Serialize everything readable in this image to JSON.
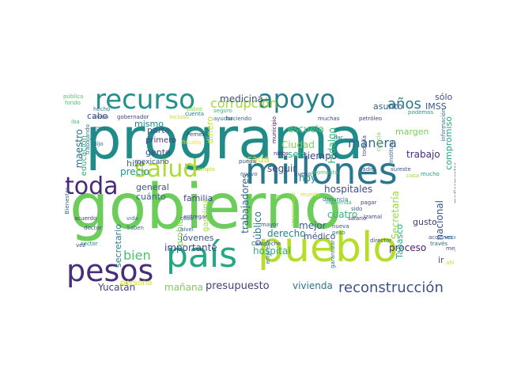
{
  "cloud": {
    "words": [
      {
        "text": "programa",
        "color": "#1f8c8a"
      },
      {
        "text": "gobierno",
        "color": "#6ccd5a"
      },
      {
        "text": "millones",
        "color": "#2a788e"
      },
      {
        "text": "pueblo",
        "color": "#b5de2b"
      },
      {
        "text": "país",
        "color": "#22a884"
      },
      {
        "text": "pesos",
        "color": "#472d7b"
      },
      {
        "text": "recurso",
        "color": "#21918c"
      },
      {
        "text": "apoyo",
        "color": "#27808e"
      },
      {
        "text": "toda",
        "color": "#482878"
      },
      {
        "text": "salud",
        "color": "#addc30"
      },
      {
        "text": "corrupción",
        "color": "#a0da39"
      },
      {
        "text": "años",
        "color": "#2a788e"
      },
      {
        "text": "reconstrucción",
        "color": "#3b528b"
      },
      {
        "text": "manera",
        "color": "#31688e"
      },
      {
        "text": "presupuesto",
        "color": "#433e85"
      },
      {
        "text": "vivienda",
        "color": "#2c728e"
      },
      {
        "text": "mañana",
        "color": "#7ad151"
      },
      {
        "text": "Yucatán",
        "color": "#414487"
      },
      {
        "text": "persona",
        "color": "#d2e21b"
      },
      {
        "text": "bien",
        "color": "#4ac16d"
      },
      {
        "text": "medicina",
        "color": "#3e4989"
      },
      {
        "text": "escuela",
        "color": "#52c569"
      },
      {
        "text": "Ciudad",
        "color": "#7ad151"
      },
      {
        "text": "seis",
        "color": "#2db27d"
      },
      {
        "text": "tiempo",
        "color": "#3f4788"
      },
      {
        "text": "cada",
        "color": "#d8e219"
      },
      {
        "text": "seguir",
        "color": "#3e4a89"
      },
      {
        "text": "hoy",
        "color": "#24868e"
      },
      {
        "text": "trabajo",
        "color": "#472a7a"
      },
      {
        "text": "margen",
        "color": "#73d056"
      },
      {
        "text": "Hidalgo",
        "color": "#35b779"
      },
      {
        "text": "asunto",
        "color": "#34618d"
      },
      {
        "text": "IMSS",
        "color": "#39558c"
      },
      {
        "text": "sólo",
        "color": "#3b528b"
      },
      {
        "text": "ir",
        "color": "#33638d"
      },
      {
        "text": "gusto",
        "color": "#453781"
      },
      {
        "text": "proceso",
        "color": "#481f70"
      },
      {
        "text": "nacional",
        "color": "#3a548c"
      },
      {
        "text": "compromiso",
        "color": "#21a685"
      },
      {
        "text": "hospitales",
        "color": "#3e4c8a"
      },
      {
        "text": "cuatro",
        "color": "#34b679"
      },
      {
        "text": "mejor",
        "color": "#355f8d"
      },
      {
        "text": "médico",
        "color": "#3c4f8a"
      },
      {
        "text": "derecho",
        "color": "#26828e"
      },
      {
        "text": "público",
        "color": "#2c738e"
      },
      {
        "text": "trabajadores",
        "color": "#31678e"
      },
      {
        "text": "hospital",
        "color": "#2ab07f"
      },
      {
        "text": "importante",
        "color": "#3d4d8a"
      },
      {
        "text": "jóvenes",
        "color": "#3c508b"
      },
      {
        "text": "familia",
        "color": "#404688"
      },
      {
        "text": "general",
        "color": "#3a548c"
      },
      {
        "text": "cuánto",
        "color": "#32658e"
      },
      {
        "text": "precio",
        "color": "#1f968b"
      },
      {
        "text": "hizo",
        "color": "#2d708e"
      },
      {
        "text": "mexicano",
        "color": "#3b528b"
      },
      {
        "text": "gente",
        "color": "#404588"
      },
      {
        "text": "parte",
        "color": "#38598c"
      },
      {
        "text": "primero",
        "color": "#44397f"
      },
      {
        "text": "mismo",
        "color": "#26828e"
      },
      {
        "text": "maestro",
        "color": "#2f6b8e"
      },
      {
        "text": "educación",
        "color": "#30b07a"
      },
      {
        "text": "cabo",
        "color": "#3b528b"
      },
      {
        "text": "problema",
        "color": "#7fd34e"
      },
      {
        "text": "secretario",
        "color": "#277f8e"
      },
      {
        "text": "Secretaría",
        "color": "#95d840"
      },
      {
        "text": "Tabasco",
        "color": "#27ad81"
      },
      {
        "text": "gasolina",
        "color": "#9bd93c"
      },
      {
        "text": "dinero",
        "color": "#c8e020"
      },
      {
        "text": "Pemex",
        "color": "#404588"
      },
      {
        "text": "fiscalía",
        "color": "#e7e419"
      },
      {
        "text": "pobre",
        "color": "#8bd646"
      },
      {
        "text": "cuenta",
        "color": "#26828e"
      },
      {
        "text": "seguro",
        "color": "#35b779"
      },
      {
        "text": "ayudar",
        "color": "#2f6c8e"
      },
      {
        "text": "haciendo",
        "color": "#32648e"
      },
      {
        "text": "muchas",
        "color": "#404688"
      },
      {
        "text": "petróleo",
        "color": "#414287"
      },
      {
        "text": "podemos",
        "color": "#1fa287"
      },
      {
        "text": "información",
        "color": "#2e6e8e"
      },
      {
        "text": "pública",
        "color": "#50c46a"
      },
      {
        "text": "fondo",
        "color": "#4ec36b"
      },
      {
        "text": "hecho",
        "color": "#2a788e"
      },
      {
        "text": "avión",
        "color": "#3b528b"
      },
      {
        "text": "creo",
        "color": "#2d718e"
      },
      {
        "text": "iba",
        "color": "#43bf71"
      },
      {
        "text": "dijo",
        "color": "#2e6f8e"
      },
      {
        "text": "trabajando",
        "color": "#31688e"
      },
      {
        "text": "acuerdo",
        "color": "#433d84"
      },
      {
        "text": "vez",
        "color": "#3d4d8a"
      },
      {
        "text": "sector",
        "color": "#2c738e"
      },
      {
        "text": "doctor",
        "color": "#3c4f8a"
      },
      {
        "text": "Bienestar",
        "color": "#2f6b8e"
      },
      {
        "text": "vida",
        "color": "#25838e"
      },
      {
        "text": "Saben",
        "color": "#31688e"
      },
      {
        "text": "cosa",
        "color": "#3d4d8a"
      },
      {
        "text": "nivel",
        "color": "#32658e"
      },
      {
        "text": "entregar",
        "color": "#404588"
      },
      {
        "text": "Campeche",
        "color": "#39568c"
      },
      {
        "text": "mayor",
        "color": "#3c4f8a"
      },
      {
        "text": "empresa",
        "color": "#2a788e"
      },
      {
        "text": "garantizar",
        "color": "#2d718e"
      },
      {
        "text": "peso",
        "color": "#287d8e"
      },
      {
        "text": "nueva",
        "color": "#38598c"
      },
      {
        "text": "Izamal",
        "color": "#3e4989"
      },
      {
        "text": "salario",
        "color": "#472d7b"
      },
      {
        "text": "sido",
        "color": "#34618d"
      },
      {
        "text": "Hacienda",
        "color": "#34b679"
      },
      {
        "text": "denuncia",
        "color": "#2c728e"
      },
      {
        "text": "pagar",
        "color": "#414487"
      },
      {
        "text": "nadie",
        "color": "#3b528b"
      },
      {
        "text": "sureste",
        "color": "#39568c"
      },
      {
        "text": "atención",
        "color": "#7ad151"
      },
      {
        "text": "responsable",
        "color": "#a5db36"
      },
      {
        "text": "mundo",
        "color": "#d8e219"
      },
      {
        "text": "pueda",
        "color": "#3e4c8a"
      },
      {
        "text": "nuevo",
        "color": "#32648e"
      },
      {
        "text": "bueno",
        "color": "#3a548c"
      },
      {
        "text": "momento",
        "color": "#56c667"
      },
      {
        "text": "niños",
        "color": "#482475"
      },
      {
        "text": "municipio",
        "color": "#471063"
      },
      {
        "text": "dar",
        "color": "#2c728e"
      },
      {
        "text": "todavía",
        "color": "#3f4889"
      },
      {
        "text": "ciencia",
        "color": "#7ad151"
      },
      {
        "text": "Instituto",
        "color": "#31688e"
      },
      {
        "text": "director",
        "color": "#3b528b"
      },
      {
        "text": "medicamentos",
        "color": "#39568c"
      },
      {
        "text": "acciones",
        "color": "#3a538b"
      },
      {
        "text": "través",
        "color": "#33638d"
      },
      {
        "text": "veces",
        "color": "#2e6e8e"
      },
      {
        "text": "mejorar",
        "color": "#3b528b"
      },
      {
        "text": "gobernador",
        "color": "#433e85"
      },
      {
        "text": "incluso",
        "color": "#c0df25"
      },
      {
        "text": "ejemplo",
        "color": "#b5de2b"
      },
      {
        "text": "mucho",
        "color": "#20a486"
      },
      {
        "text": "casa",
        "color": "#9bd93c"
      },
      {
        "text": "ahí",
        "color": "#c2df23"
      }
    ]
  }
}
